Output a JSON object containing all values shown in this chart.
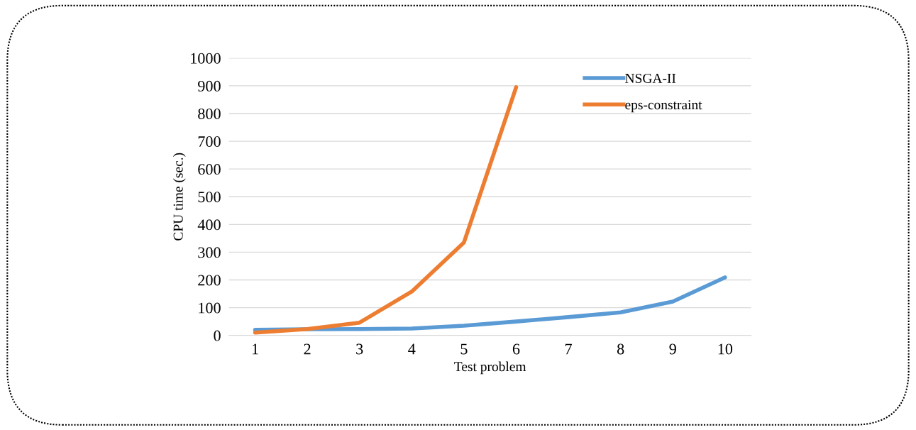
{
  "chart_data": {
    "type": "line",
    "xlabel": "Test problem",
    "ylabel": "CPU time (sec.)",
    "categories": [
      "1",
      "2",
      "3",
      "4",
      "5",
      "6",
      "7",
      "8",
      "9",
      "10"
    ],
    "series": [
      {
        "name": "NSGA-II",
        "color": "#5b9bd5",
        "values": [
          20,
          22,
          23,
          25,
          35,
          50,
          66,
          83,
          122,
          209
        ]
      },
      {
        "name": "eps-constraint",
        "color": "#ed7d31",
        "values": [
          10,
          23,
          46,
          158,
          335,
          895,
          null,
          null,
          null,
          null
        ]
      }
    ],
    "ylim": [
      0,
      1000
    ],
    "yticks": [
      0,
      100,
      200,
      300,
      400,
      500,
      600,
      700,
      800,
      900,
      1000
    ],
    "grid": "y",
    "legend": "top right",
    "marker": "none",
    "line_style": "solid"
  }
}
